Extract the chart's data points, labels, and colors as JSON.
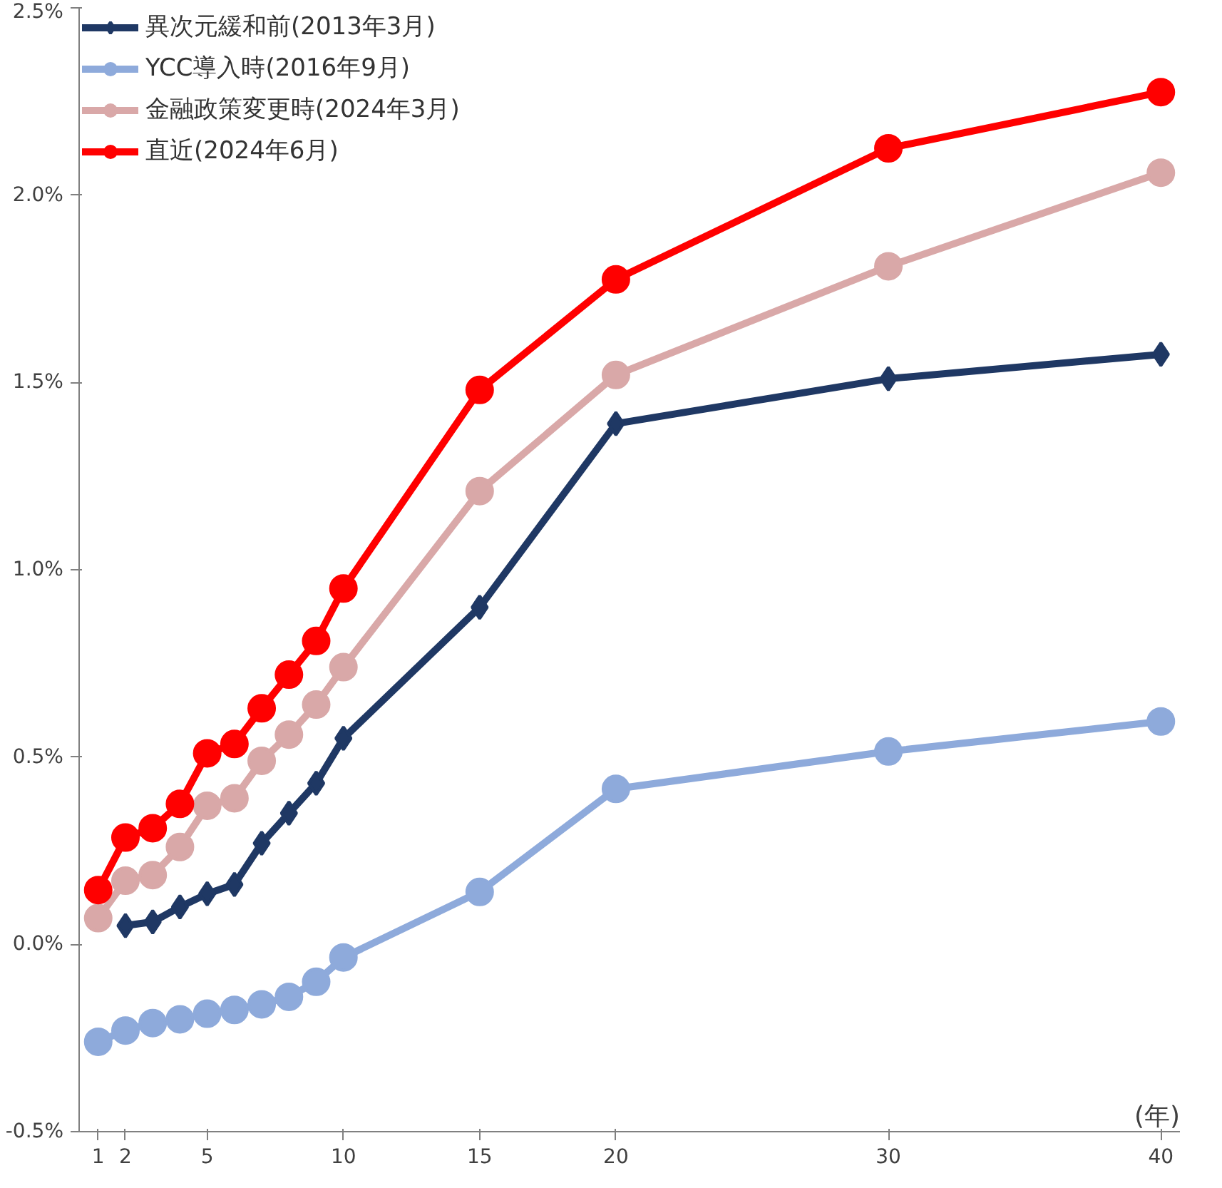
{
  "chart_data": {
    "type": "line",
    "xlabel": "(年)",
    "x": [
      1,
      2,
      3,
      4,
      5,
      6,
      7,
      8,
      9,
      10,
      15,
      20,
      30,
      40
    ],
    "series": [
      {
        "name": "異次元緩和前(2013年3月)",
        "color": "#1f3864",
        "marker": "diamond",
        "values": [
          null,
          0.05,
          0.06,
          0.1,
          0.135,
          0.16,
          0.27,
          0.35,
          0.43,
          0.55,
          0.9,
          1.39,
          1.51,
          1.575
        ]
      },
      {
        "name": "YCC導入時(2016年9月)",
        "color": "#8eaadb",
        "marker": "circle",
        "values": [
          -0.26,
          -0.23,
          -0.21,
          -0.2,
          -0.185,
          -0.175,
          -0.16,
          -0.14,
          -0.1,
          -0.035,
          0.14,
          0.415,
          0.515,
          0.595
        ]
      },
      {
        "name": "金融政策変更時(2024年3月)",
        "color": "#d9a8a8",
        "marker": "circle",
        "values": [
          0.07,
          0.17,
          0.185,
          0.26,
          0.37,
          0.39,
          0.49,
          0.56,
          0.64,
          0.74,
          1.21,
          1.52,
          1.81,
          2.06
        ]
      },
      {
        "name": "直近(2024年6月)",
        "color": "#ff0000",
        "marker": "circle",
        "values": [
          0.145,
          0.285,
          0.31,
          0.375,
          0.51,
          0.535,
          0.63,
          0.72,
          0.81,
          0.95,
          1.48,
          1.775,
          2.125,
          2.275
        ]
      }
    ],
    "xlim": [
      0.3,
      40.7
    ],
    "xticks": [
      1,
      2,
      5,
      10,
      15,
      20,
      30,
      40
    ],
    "ylim": [
      -0.5,
      2.5
    ],
    "yticks": [
      {
        "value": -0.5,
        "label": "-0.5%"
      },
      {
        "value": 0,
        "label": "0.0%"
      },
      {
        "value": 0.5,
        "label": "0.5%"
      },
      {
        "value": 1,
        "label": "1.0%"
      },
      {
        "value": 1.5,
        "label": "1.5%"
      },
      {
        "value": 2,
        "label": "2.0%"
      },
      {
        "value": 2.5,
        "label": "2.5%"
      }
    ],
    "grid": false,
    "legend": "top left",
    "line_style": "solid"
  }
}
